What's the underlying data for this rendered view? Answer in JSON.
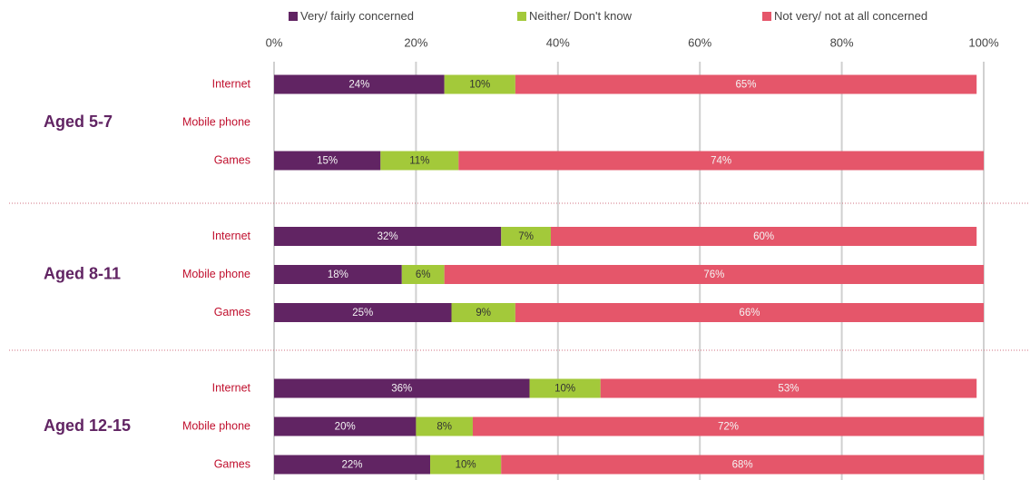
{
  "chart_data": {
    "type": "stacked-bar-horizontal",
    "groups": [
      "Aged 5-7",
      "Aged 8-11",
      "Aged 12-15"
    ],
    "categories": [
      "Internet",
      "Mobile phone",
      "Games",
      "Internet",
      "Mobile phone",
      "Games",
      "Internet",
      "Mobile phone",
      "Games"
    ],
    "series": [
      {
        "name": "Very/ fairly concerned",
        "color": "#612463",
        "values": [
          24,
          null,
          15,
          32,
          18,
          25,
          36,
          20,
          22
        ],
        "value_labels": [
          "24%",
          null,
          "15%",
          "32%",
          "18%",
          "25%",
          "36%",
          "20%",
          "22%"
        ]
      },
      {
        "name": "Neither/ Don't know",
        "color": "#a3c93a",
        "values": [
          10,
          null,
          11,
          7,
          6,
          9,
          10,
          8,
          10
        ],
        "value_labels": [
          "10%",
          null,
          "11%",
          "7%",
          "6%",
          "9%",
          "10%",
          "8%",
          "10%"
        ]
      },
      {
        "name": "Not very/ not at all concerned",
        "color": "#e5566a",
        "values": [
          65,
          null,
          74,
          60,
          76,
          66,
          53,
          72,
          68
        ],
        "value_labels": [
          "65%",
          null,
          "74%",
          "60%",
          "76%",
          "66%",
          "53%",
          "72%",
          "68%"
        ]
      }
    ],
    "xlim": [
      0,
      100
    ],
    "xticks": [
      {
        "value": 0,
        "label": "0%"
      },
      {
        "value": 20,
        "label": "20%"
      },
      {
        "value": 40,
        "label": "40%"
      },
      {
        "value": 60,
        "label": "60%"
      },
      {
        "value": 80,
        "label": "80%"
      },
      {
        "value": 100,
        "label": "100%"
      }
    ],
    "grid": true
  }
}
